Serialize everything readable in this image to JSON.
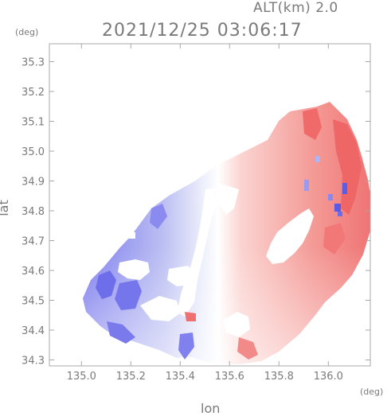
{
  "header": {
    "altitude": "ALT(km) 2.0",
    "timestamp": "2021/12/25 03:06:17"
  },
  "chart_data": {
    "type": "heatmap",
    "title": "2021/12/25 03:06:17",
    "subtitle": "ALT(km) 2.0",
    "xlabel": "lon",
    "ylabel": "lat",
    "x_unit": "(deg)",
    "y_unit": "(deg)",
    "xlim": [
      134.87,
      136.17
    ],
    "ylim": [
      34.28,
      35.36
    ],
    "x_ticks": [
      135.0,
      135.2,
      135.4,
      135.6,
      135.8,
      136.0
    ],
    "x_tick_labels": [
      "135.0",
      "135.2",
      "135.4",
      "135.6",
      "135.8",
      "136.0"
    ],
    "y_ticks": [
      34.3,
      34.4,
      34.5,
      34.6,
      34.7,
      34.8,
      34.9,
      35.0,
      35.1,
      35.2,
      35.3
    ],
    "y_tick_labels": [
      "34.3",
      "34.4",
      "34.5",
      "34.6",
      "34.7",
      "34.8",
      "34.9",
      "35.0",
      "35.1",
      "35.2",
      "35.3"
    ],
    "grid": false,
    "colors": {
      "approaching": "#8c8cf0",
      "receding": "#f07878",
      "neutral": "#ffffff"
    }
  }
}
